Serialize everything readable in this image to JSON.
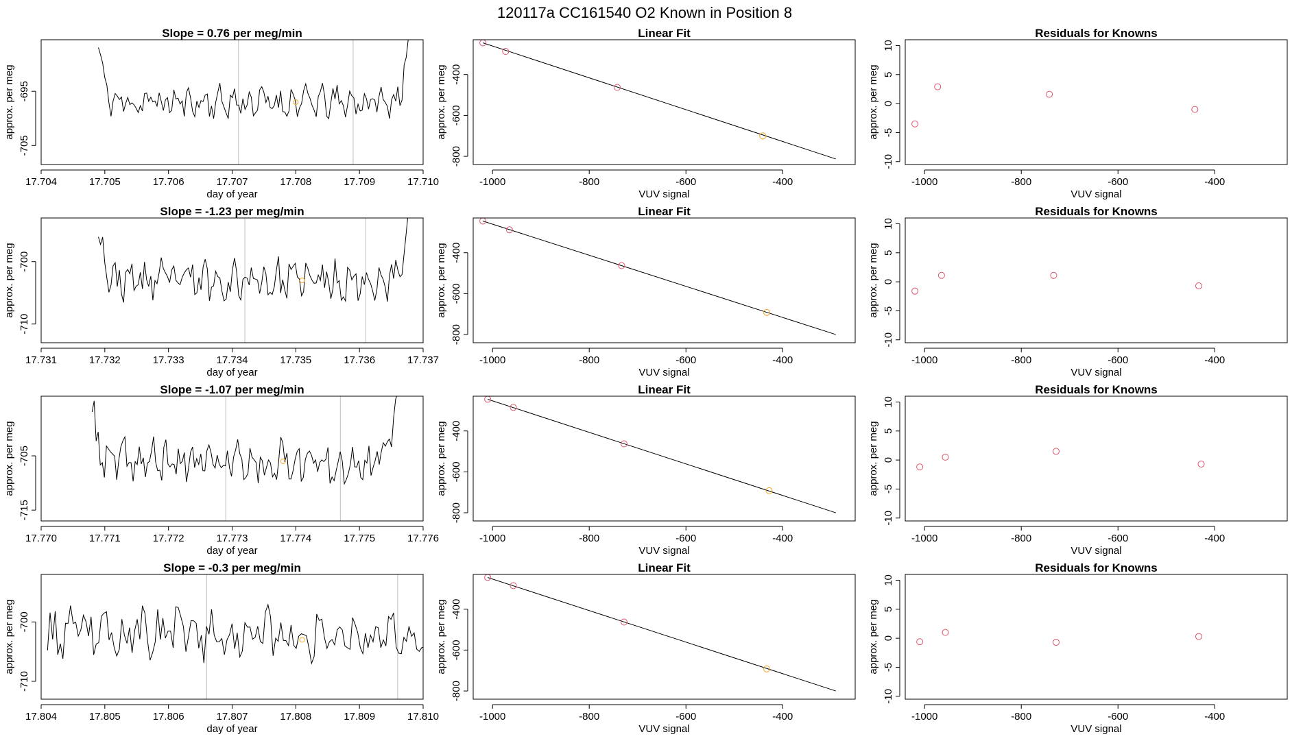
{
  "figure": {
    "title": "120117a      CC161540    O2 Known in Position  8"
  },
  "colors": {
    "axis": "#000000",
    "trace": "#000000",
    "vline": "#bebebe",
    "point_red": "#df536b",
    "point_orange": "#f5a623"
  },
  "chart_data": [
    {
      "type": "line",
      "title": "Slope =  0.76  per meg/min",
      "xlabel": "day of year",
      "ylabel": "approx. per meg",
      "xlim": [
        17.704,
        17.71
      ],
      "ylim": [
        -708.5,
        -685.5
      ],
      "xticks": [
        17.704,
        17.705,
        17.706,
        17.707,
        17.708,
        17.709,
        17.71
      ],
      "xtick_labels": [
        "17.704",
        "17.705",
        "17.706",
        "17.707",
        "17.708",
        "17.709",
        "17.710"
      ],
      "yticks": [
        -695,
        -705
      ],
      "ytick_labels": [
        "-695",
        "-705"
      ],
      "vlines": [
        17.7071,
        17.7089
      ],
      "known_point": {
        "x": 17.708,
        "y": -697
      },
      "trace": {
        "x_start": 17.7049,
        "x_end": 17.7098,
        "base": -697,
        "amp": 2.3,
        "edge_left": 10,
        "edge_right": 12,
        "seed": 11
      }
    },
    {
      "type": "scatter",
      "title": "Linear Fit",
      "xlabel": "VUV signal",
      "ylabel": "approx. per meg",
      "xlim": [
        -1040,
        -250
      ],
      "ylim": [
        -840,
        -230
      ],
      "xticks": [
        -1000,
        -800,
        -600,
        -400
      ],
      "xtick_labels": [
        "-1000",
        "-800",
        "-600",
        "-400"
      ],
      "yticks": [
        -400,
        -600,
        -800
      ],
      "ytick_labels": [
        "-400",
        "-600",
        "-800"
      ],
      "fit_line": {
        "x": [
          -1020,
          -290
        ],
        "y": [
          -245,
          -813
        ]
      },
      "points": [
        {
          "x": -1020,
          "y": -245,
          "color": "red"
        },
        {
          "x": -973,
          "y": -287,
          "color": "red"
        },
        {
          "x": -742,
          "y": -463,
          "color": "red"
        },
        {
          "x": -441,
          "y": -700,
          "color": "orange"
        }
      ]
    },
    {
      "type": "scatter",
      "title": "Residuals for Knowns",
      "xlabel": "VUV signal",
      "ylabel": "approx. per meg",
      "xlim": [
        -1040,
        -250
      ],
      "ylim": [
        -10.5,
        11
      ],
      "xticks": [
        -1000,
        -800,
        -600,
        -400
      ],
      "xtick_labels": [
        "-1000",
        "-800",
        "-600",
        "-400"
      ],
      "yticks": [
        10,
        5,
        0,
        -5,
        -10
      ],
      "ytick_labels": [
        "10",
        "5",
        "0",
        "-5",
        "-10"
      ],
      "points": [
        {
          "x": -1020,
          "y": -3.5,
          "color": "red"
        },
        {
          "x": -973,
          "y": 2.9,
          "color": "red"
        },
        {
          "x": -742,
          "y": 1.6,
          "color": "red"
        },
        {
          "x": -441,
          "y": -1.0,
          "color": "red"
        }
      ]
    },
    {
      "type": "line",
      "title": "Slope =  -1.23  per meg/min",
      "xlabel": "day of year",
      "ylabel": "approx. per meg",
      "xlim": [
        17.731,
        17.737
      ],
      "ylim": [
        -713,
        -693
      ],
      "xticks": [
        17.731,
        17.732,
        17.733,
        17.734,
        17.735,
        17.736,
        17.737
      ],
      "xtick_labels": [
        "17.731",
        "17.732",
        "17.733",
        "17.734",
        "17.735",
        "17.736",
        "17.737"
      ],
      "yticks": [
        -700,
        -710
      ],
      "ytick_labels": [
        "-700",
        "-710"
      ],
      "vlines": [
        17.7342,
        17.7361
      ],
      "known_point": {
        "x": 17.7351,
        "y": -703
      },
      "trace": {
        "x_start": 17.7319,
        "x_end": 17.7368,
        "base": -703,
        "amp": 2.5,
        "edge_left": 9,
        "edge_right": 12,
        "seed": 23
      }
    },
    {
      "type": "scatter",
      "title": "Linear Fit",
      "xlabel": "VUV signal",
      "ylabel": "approx. per meg",
      "xlim": [
        -1040,
        -250
      ],
      "ylim": [
        -840,
        -230
      ],
      "xticks": [
        -1000,
        -800,
        -600,
        -400
      ],
      "xtick_labels": [
        "-1000",
        "-800",
        "-600",
        "-400"
      ],
      "yticks": [
        -400,
        -600,
        -800
      ],
      "ytick_labels": [
        "-400",
        "-600",
        "-800"
      ],
      "fit_line": {
        "x": [
          -1020,
          -290
        ],
        "y": [
          -245,
          -800
        ]
      },
      "points": [
        {
          "x": -1020,
          "y": -245,
          "color": "red"
        },
        {
          "x": -965,
          "y": -288,
          "color": "red"
        },
        {
          "x": -733,
          "y": -463,
          "color": "red"
        },
        {
          "x": -433,
          "y": -692,
          "color": "orange"
        }
      ]
    },
    {
      "type": "scatter",
      "title": "Residuals for Knowns",
      "xlabel": "VUV signal",
      "ylabel": "approx. per meg",
      "xlim": [
        -1040,
        -250
      ],
      "ylim": [
        -10.5,
        11
      ],
      "xticks": [
        -1000,
        -800,
        -600,
        -400
      ],
      "xtick_labels": [
        "-1000",
        "-800",
        "-600",
        "-400"
      ],
      "yticks": [
        10,
        5,
        0,
        -5,
        -10
      ],
      "ytick_labels": [
        "10",
        "5",
        "0",
        "-5",
        "-10"
      ],
      "points": [
        {
          "x": -1020,
          "y": -1.6,
          "color": "red"
        },
        {
          "x": -965,
          "y": 1.1,
          "color": "red"
        },
        {
          "x": -733,
          "y": 1.1,
          "color": "red"
        },
        {
          "x": -433,
          "y": -0.7,
          "color": "red"
        }
      ]
    },
    {
      "type": "line",
      "title": "Slope =  -1.07  per meg/min",
      "xlabel": "day of year",
      "ylabel": "approx. per meg",
      "xlim": [
        17.77,
        17.776
      ],
      "ylim": [
        -717,
        -694
      ],
      "xticks": [
        17.77,
        17.771,
        17.772,
        17.773,
        17.774,
        17.775,
        17.776
      ],
      "xtick_labels": [
        "17.770",
        "17.771",
        "17.772",
        "17.773",
        "17.774",
        "17.775",
        "17.776"
      ],
      "yticks": [
        -705,
        -715
      ],
      "ytick_labels": [
        "-705",
        "-715"
      ],
      "vlines": [
        17.7729,
        17.7747
      ],
      "known_point": {
        "x": 17.7738,
        "y": -706
      },
      "trace": {
        "x_start": 17.7708,
        "x_end": 17.7756,
        "base": -706,
        "amp": 3.0,
        "edge_left": 9,
        "edge_right": 12,
        "seed": 37
      }
    },
    {
      "type": "scatter",
      "title": "Linear Fit",
      "xlabel": "VUV signal",
      "ylabel": "approx. per meg",
      "xlim": [
        -1040,
        -250
      ],
      "ylim": [
        -840,
        -230
      ],
      "xticks": [
        -1000,
        -800,
        -600,
        -400
      ],
      "xtick_labels": [
        "-1000",
        "-800",
        "-600",
        "-400"
      ],
      "yticks": [
        -400,
        -600,
        -800
      ],
      "ytick_labels": [
        "-400",
        "-600",
        "-800"
      ],
      "fit_line": {
        "x": [
          -1010,
          -290
        ],
        "y": [
          -245,
          -800
        ]
      },
      "points": [
        {
          "x": -1010,
          "y": -245,
          "color": "red"
        },
        {
          "x": -957,
          "y": -285,
          "color": "red"
        },
        {
          "x": -728,
          "y": -463,
          "color": "red"
        },
        {
          "x": -428,
          "y": -692,
          "color": "orange"
        }
      ]
    },
    {
      "type": "scatter",
      "title": "Residuals for Knowns",
      "xlabel": "VUV signal",
      "ylabel": "approx. per meg",
      "xlim": [
        -1040,
        -250
      ],
      "ylim": [
        -10.5,
        11
      ],
      "xticks": [
        -1000,
        -800,
        -600,
        -400
      ],
      "xtick_labels": [
        "-1000",
        "-800",
        "-600",
        "-400"
      ],
      "yticks": [
        10,
        5,
        0,
        -5,
        -10
      ],
      "ytick_labels": [
        "10",
        "5",
        "0",
        "-5",
        "-10"
      ],
      "points": [
        {
          "x": -1010,
          "y": -1.2,
          "color": "red"
        },
        {
          "x": -957,
          "y": 0.5,
          "color": "red"
        },
        {
          "x": -728,
          "y": 1.5,
          "color": "red"
        },
        {
          "x": -428,
          "y": -0.7,
          "color": "red"
        }
      ]
    },
    {
      "type": "line",
      "title": "Slope =  -0.3  per meg/min",
      "xlabel": "day of year",
      "ylabel": "approx. per meg",
      "xlim": [
        17.804,
        17.81
      ],
      "ylim": [
        -713,
        -692
      ],
      "xticks": [
        17.804,
        17.805,
        17.806,
        17.807,
        17.808,
        17.809,
        17.81
      ],
      "xtick_labels": [
        "17.804",
        "17.805",
        "17.806",
        "17.807",
        "17.808",
        "17.809",
        "17.810"
      ],
      "yticks": [
        -700,
        -710
      ],
      "ytick_labels": [
        "-700",
        "-710"
      ],
      "vlines": [
        17.8066,
        17.8096
      ],
      "known_point": {
        "x": 17.8081,
        "y": -703
      },
      "trace": {
        "x_start": 17.8041,
        "x_end": 17.8101,
        "base": -702,
        "amp": 3.2,
        "edge_left": 0,
        "edge_right": 0,
        "seed": 53
      }
    },
    {
      "type": "scatter",
      "title": "Linear Fit",
      "xlabel": "VUV signal",
      "ylabel": "approx. per meg",
      "xlim": [
        -1040,
        -250
      ],
      "ylim": [
        -840,
        -230
      ],
      "xticks": [
        -1000,
        -800,
        -600,
        -400
      ],
      "xtick_labels": [
        "-1000",
        "-800",
        "-600",
        "-400"
      ],
      "yticks": [
        -400,
        -600,
        -800
      ],
      "ytick_labels": [
        "-400",
        "-600",
        "-800"
      ],
      "fit_line": {
        "x": [
          -1010,
          -290
        ],
        "y": [
          -245,
          -800
        ]
      },
      "points": [
        {
          "x": -1010,
          "y": -245,
          "color": "red"
        },
        {
          "x": -957,
          "y": -285,
          "color": "red"
        },
        {
          "x": -728,
          "y": -463,
          "color": "red"
        },
        {
          "x": -433,
          "y": -692,
          "color": "orange"
        }
      ]
    },
    {
      "type": "scatter",
      "title": "Residuals for Knowns",
      "xlabel": "VUV signal",
      "ylabel": "approx. per meg",
      "xlim": [
        -1040,
        -250
      ],
      "ylim": [
        -10.5,
        11
      ],
      "xticks": [
        -1000,
        -800,
        -600,
        -400
      ],
      "xtick_labels": [
        "-1000",
        "-800",
        "-600",
        "-400"
      ],
      "yticks": [
        10,
        5,
        0,
        -5,
        -10
      ],
      "ytick_labels": [
        "10",
        "5",
        "0",
        "-5",
        "-10"
      ],
      "points": [
        {
          "x": -1010,
          "y": -0.6,
          "color": "red"
        },
        {
          "x": -957,
          "y": 1.0,
          "color": "red"
        },
        {
          "x": -728,
          "y": -0.7,
          "color": "red"
        },
        {
          "x": -433,
          "y": 0.3,
          "color": "red"
        }
      ]
    }
  ]
}
